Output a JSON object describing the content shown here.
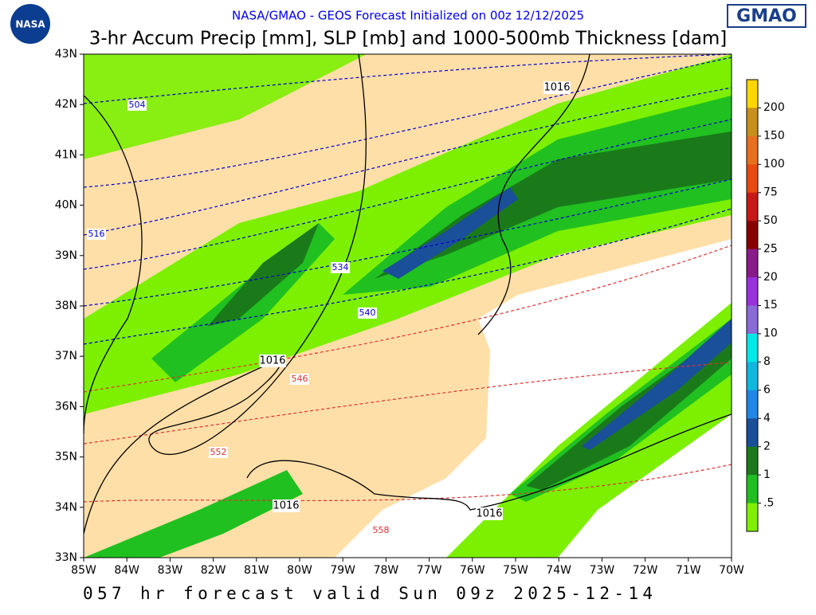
{
  "header": {
    "logo_left": "NASA",
    "subtitle": "NASA/GMAO - GEOS Forecast Initialized on 00z 12/12/2025",
    "logo_right": "GMAO",
    "title": "3-hr Accum Precip [mm], SLP [mb] and 1000-500mb Thickness [dam]"
  },
  "map": {
    "latitude_labels": [
      "43N",
      "42N",
      "41N",
      "40N",
      "39N",
      "38N",
      "37N",
      "36N",
      "35N",
      "34N",
      "33N"
    ],
    "longitude_labels": [
      "85W",
      "84W",
      "83W",
      "82W",
      "81W",
      "80W",
      "79W",
      "78W",
      "77W",
      "76W",
      "75W",
      "74W",
      "73W",
      "72W",
      "71W",
      "70W"
    ],
    "thickness_labels": [
      {
        "text": "504",
        "color": "#0000cc"
      },
      {
        "text": "516",
        "color": "#0000cc"
      },
      {
        "text": "534",
        "color": "#0000cc"
      },
      {
        "text": "540",
        "color": "#0000cc"
      },
      {
        "text": "546",
        "color": "#e03030"
      },
      {
        "text": "552",
        "color": "#e03030"
      },
      {
        "text": "558",
        "color": "#e03030"
      }
    ],
    "pressure_labels": [
      "1016",
      "1016",
      "1016",
      "1016"
    ]
  },
  "colorbar": {
    "labels": [
      "200",
      "150",
      "100",
      "75",
      "50",
      "25",
      "20",
      "15",
      "10",
      "8",
      "6",
      "4",
      "2",
      "1",
      ".5"
    ],
    "colors": [
      "#ffd700",
      "#c8901a",
      "#e8701a",
      "#e84a10",
      "#c81818",
      "#8b0000",
      "#8b1a8b",
      "#9b30e0",
      "#8a6ad8",
      "#00e8e8",
      "#10b8e0",
      "#1e88e8",
      "#1a4f9a",
      "#1a7a1a",
      "#1fbf1f",
      "#80f000"
    ]
  },
  "footer": {
    "text": "057 hr forecast valid Sun 09z 2025-12-14"
  }
}
